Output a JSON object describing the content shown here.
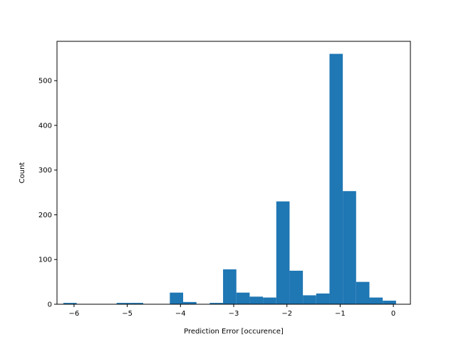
{
  "chart_data": {
    "type": "bar",
    "title": "",
    "xlabel": "Prediction Error [occurence]",
    "ylabel": "Count",
    "xlim": [
      -6.32,
      0.32
    ],
    "ylim": [
      0,
      588
    ],
    "grid": false,
    "color": "#1f77b4",
    "bin_width": 0.25,
    "bins": [
      {
        "x0": -6.2,
        "value": 3
      },
      {
        "x0": -5.95,
        "value": 0
      },
      {
        "x0": -5.7,
        "value": 0
      },
      {
        "x0": -5.45,
        "value": 0
      },
      {
        "x0": -5.2,
        "value": 3
      },
      {
        "x0": -4.95,
        "value": 3
      },
      {
        "x0": -4.7,
        "value": 0
      },
      {
        "x0": -4.45,
        "value": 0
      },
      {
        "x0": -4.2,
        "value": 26
      },
      {
        "x0": -3.95,
        "value": 5
      },
      {
        "x0": -3.7,
        "value": 0
      },
      {
        "x0": -3.45,
        "value": 3
      },
      {
        "x0": -3.2,
        "value": 78
      },
      {
        "x0": -2.95,
        "value": 26
      },
      {
        "x0": -2.7,
        "value": 17
      },
      {
        "x0": -2.45,
        "value": 15
      },
      {
        "x0": -2.2,
        "value": 230
      },
      {
        "x0": -1.95,
        "value": 75
      },
      {
        "x0": -1.7,
        "value": 20
      },
      {
        "x0": -1.45,
        "value": 24
      },
      {
        "x0": -1.2,
        "value": 560
      },
      {
        "x0": -0.95,
        "value": 253
      },
      {
        "x0": -0.7,
        "value": 50
      },
      {
        "x0": -0.45,
        "value": 15
      },
      {
        "x0": -0.2,
        "value": 8
      }
    ],
    "xticks": [
      -6,
      -5,
      -4,
      -3,
      -2,
      -1,
      0
    ],
    "xtick_labels": [
      "−6",
      "−5",
      "−4",
      "−3",
      "−2",
      "−1",
      "0"
    ],
    "yticks": [
      0,
      100,
      200,
      300,
      400,
      500
    ],
    "ytick_labels": [
      "0",
      "100",
      "200",
      "300",
      "400",
      "500"
    ]
  }
}
